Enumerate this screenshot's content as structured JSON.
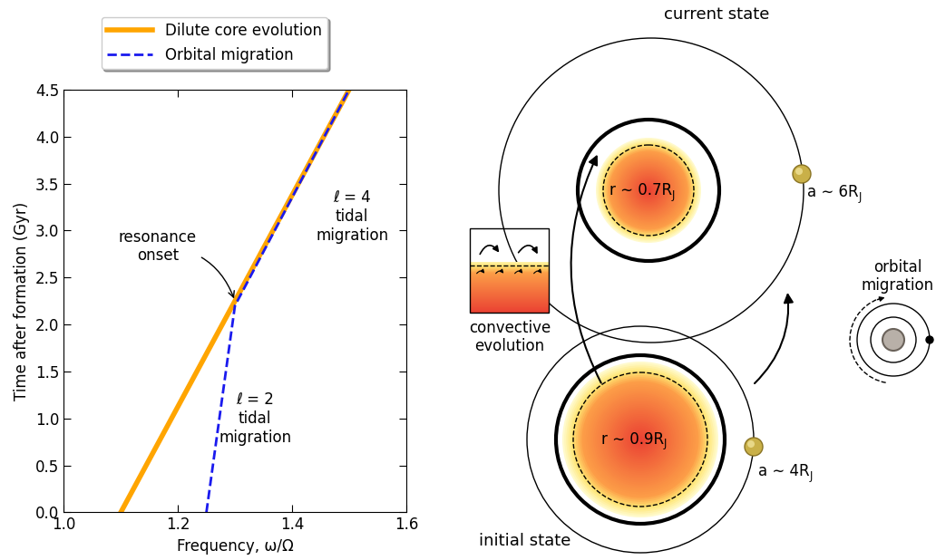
{
  "chart_data": {
    "type": "line",
    "xlabel": "Frequency, ω/Ω",
    "ylabel": "Time after formation (Gyr)",
    "xlim": [
      1.0,
      1.6
    ],
    "ylim": [
      0.0,
      4.5
    ],
    "xticks": [
      {
        "value": 1.0,
        "label": "1.0"
      },
      {
        "value": 1.2,
        "label": "1.2"
      },
      {
        "value": 1.4,
        "label": "1.4"
      },
      {
        "value": 1.6,
        "label": "1.6"
      }
    ],
    "yticks": [
      {
        "value": 0.0,
        "label": "0.0"
      },
      {
        "value": 0.5,
        "label": "0.5"
      },
      {
        "value": 1.0,
        "label": "1.0"
      },
      {
        "value": 1.5,
        "label": "1.5"
      },
      {
        "value": 2.0,
        "label": "2.0"
      },
      {
        "value": 2.5,
        "label": "2.5"
      },
      {
        "value": 3.0,
        "label": "3.0"
      },
      {
        "value": 3.5,
        "label": "3.5"
      },
      {
        "value": 4.0,
        "label": "4.0"
      },
      {
        "value": 4.5,
        "label": "4.5"
      }
    ],
    "legend": "upper center",
    "series": [
      {
        "name": "Dilute core evolution",
        "color": "#ffa500",
        "line_style": "solid",
        "x": [
          1.1,
          1.5
        ],
        "values": [
          0.0,
          4.5
        ]
      },
      {
        "name": "Orbital migration",
        "color": "#1a1aee",
        "line_style": "dashed",
        "x": [
          1.25,
          1.3,
          1.5
        ],
        "values": [
          0.0,
          2.2,
          4.5
        ]
      }
    ],
    "annotations": [
      {
        "text": "resonance\nonset",
        "x": 1.3,
        "y": 2.25
      },
      {
        "text": "ℓ = 2\ntidal\nmigration"
      },
      {
        "text": "ℓ = 4\ntidal\nmigration"
      }
    ]
  },
  "diagram": {
    "current_state": {
      "title": "current state",
      "core_label": {
        "text": "r ∼ 0.7R",
        "subscript": "J"
      },
      "moon_label": {
        "text": "a ∼ 6R",
        "subscript": "J"
      }
    },
    "initial_state": {
      "title": "initial state",
      "core_label": {
        "text": "r ∼ 0.9R",
        "subscript": "J"
      },
      "moon_label": {
        "text": "a ∼ 4R",
        "subscript": "J"
      }
    },
    "convective_inset": {
      "label": "convective\nevolution"
    },
    "migration_icon": {
      "label": "orbital\nmigration"
    }
  }
}
